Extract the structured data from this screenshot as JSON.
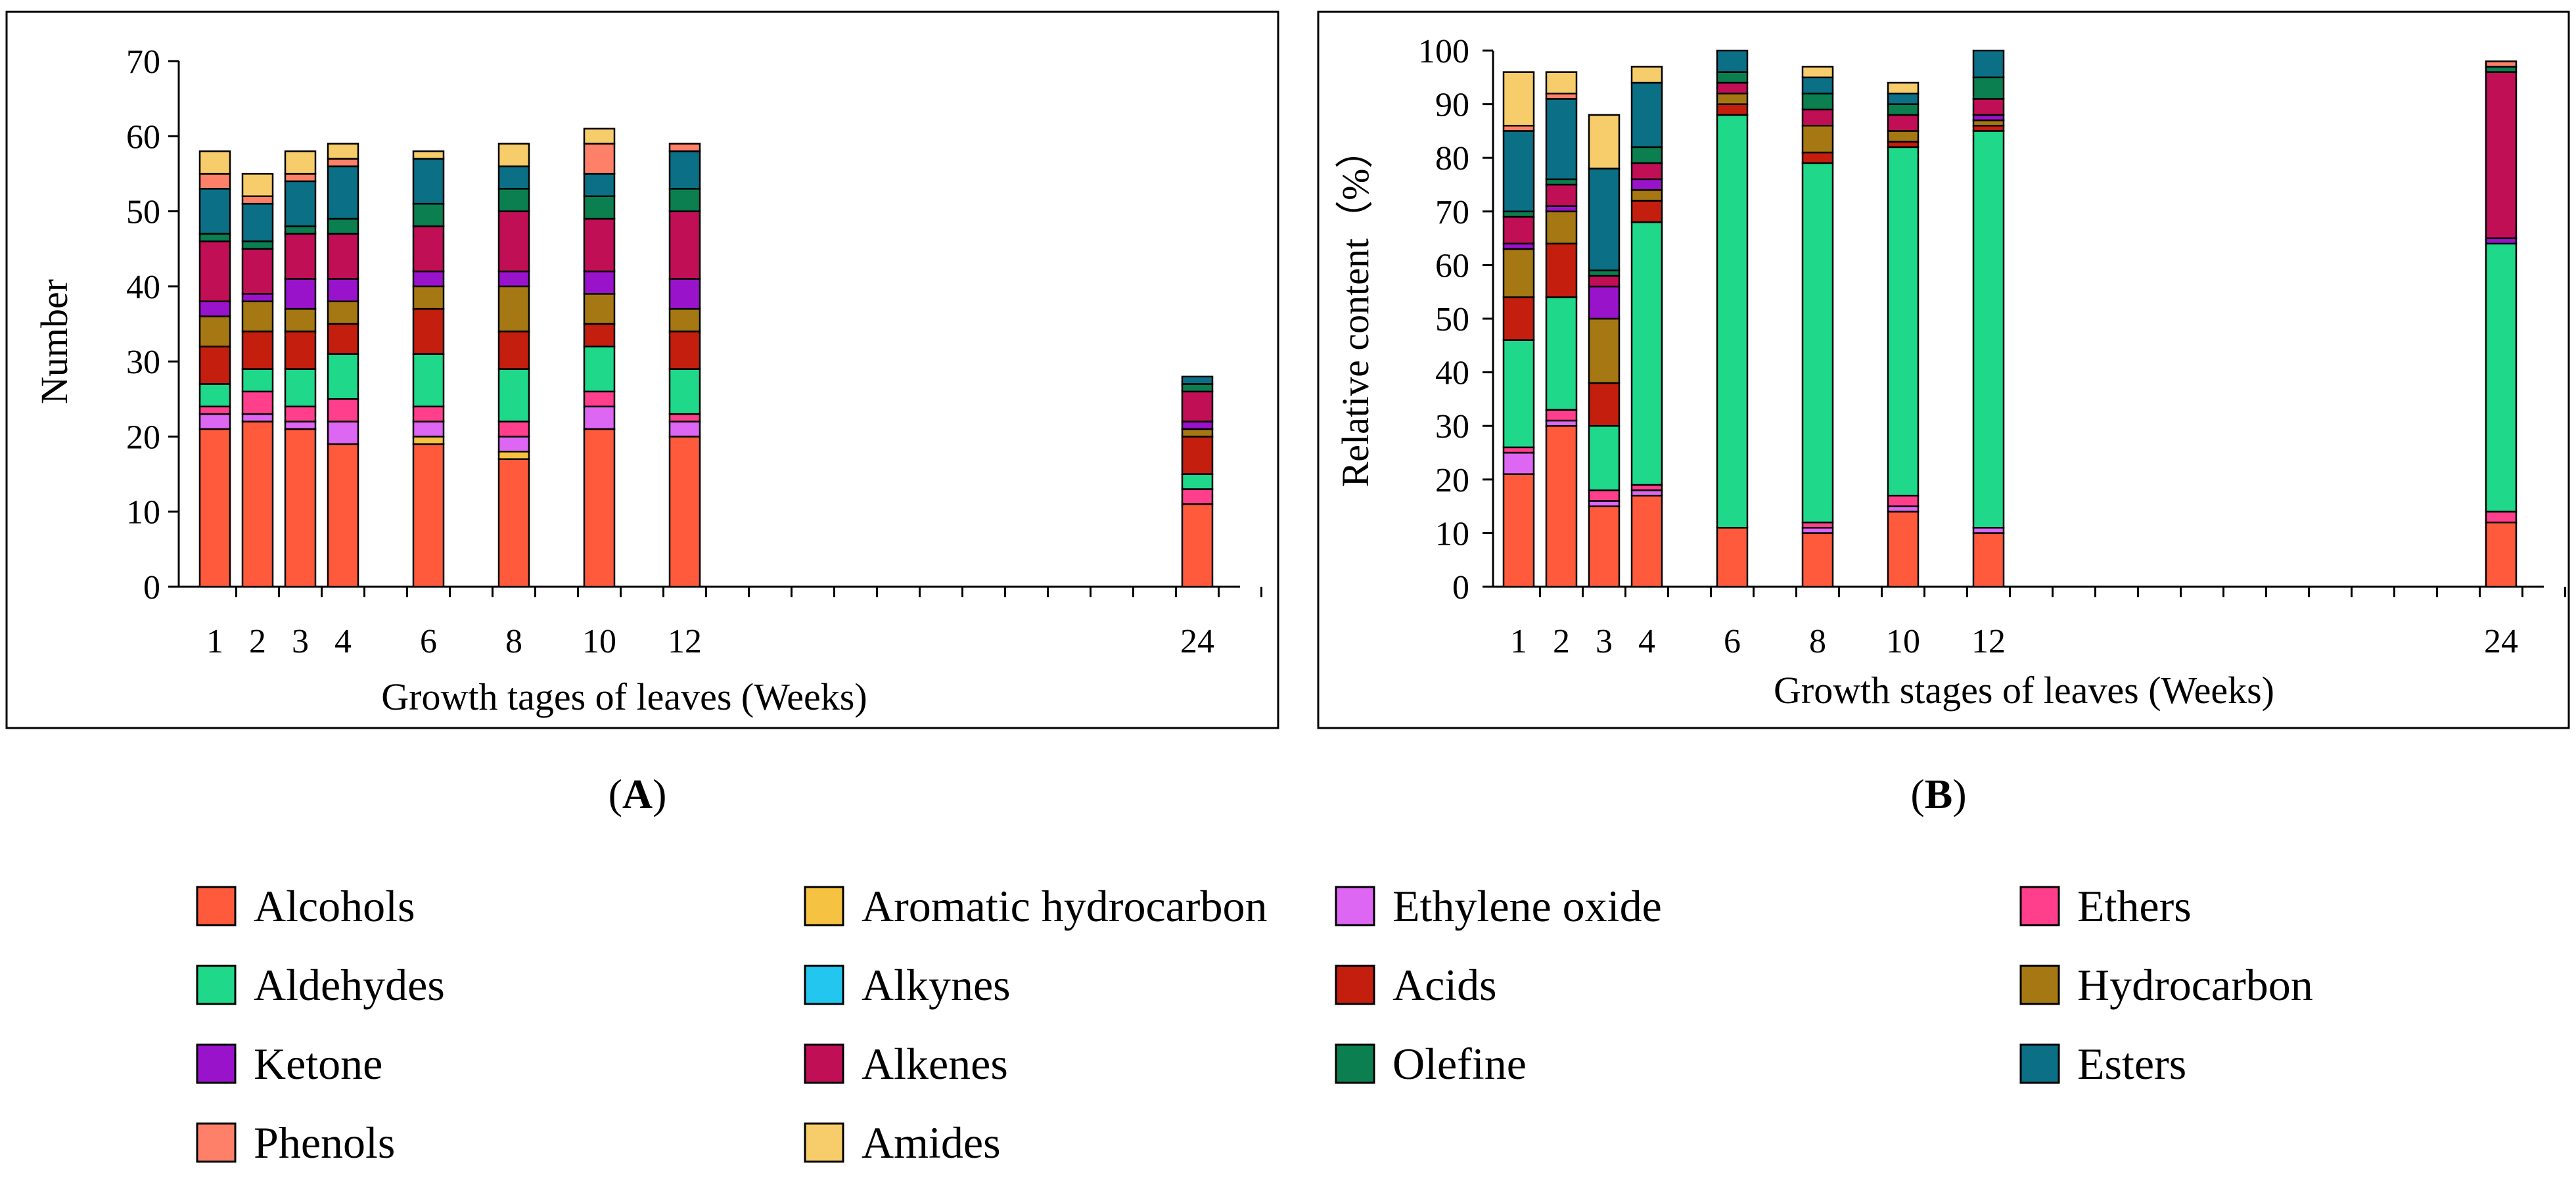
{
  "legend": [
    {
      "name": "Alcohols",
      "color": "#FF5A3C"
    },
    {
      "name": "Aromatic hydrocarbon",
      "color": "#F5C242"
    },
    {
      "name": "Ethylene oxide",
      "color": "#DD66F2"
    },
    {
      "name": "Ethers",
      "color": "#FF3F8C"
    },
    {
      "name": "Aldehydes",
      "color": "#1FD88A"
    },
    {
      "name": "Alkynes",
      "color": "#22C6EE"
    },
    {
      "name": "Acids",
      "color": "#C41E0F"
    },
    {
      "name": "Hydrocarbon",
      "color": "#A67814"
    },
    {
      "name": "Ketone",
      "color": "#9913CB"
    },
    {
      "name": "Alkenes",
      "color": "#C00F55"
    },
    {
      "name": "Olefine",
      "color": "#0C7F50"
    },
    {
      "name": "Esters",
      "color": "#0B6F86"
    },
    {
      "name": "Phenols",
      "color": "#FF8068"
    },
    {
      "name": "Amides",
      "color": "#F6CD6A"
    }
  ],
  "chart_data": [
    {
      "type": "bar",
      "stacked": true,
      "panel_label": "A",
      "xlabel": "Growth tages of leaves (Weeks)",
      "ylabel": "Number",
      "ylim": [
        0,
        70
      ],
      "yticks": [
        0,
        10,
        20,
        30,
        40,
        50,
        60,
        70
      ],
      "xlim": [
        0,
        25
      ],
      "x_ticks": [
        1,
        2,
        3,
        4,
        5,
        6,
        7,
        8,
        9,
        10,
        11,
        12,
        13,
        14,
        15,
        16,
        17,
        18,
        19,
        20,
        21,
        22,
        23,
        24,
        25
      ],
      "categories": [
        "1",
        "2",
        "3",
        "4",
        "6",
        "8",
        "10",
        "12",
        "24"
      ],
      "series": [
        {
          "name": "Alcohols",
          "values": [
            21,
            22,
            21,
            19,
            19,
            17,
            21,
            20,
            11
          ]
        },
        {
          "name": "Aromatic hydrocarbon",
          "values": [
            0,
            0,
            0,
            0,
            1,
            1,
            0,
            0,
            0
          ]
        },
        {
          "name": "Ethylene oxide",
          "values": [
            2,
            1,
            1,
            3,
            2,
            2,
            3,
            2,
            0
          ]
        },
        {
          "name": "Ethers",
          "values": [
            1,
            3,
            2,
            3,
            2,
            2,
            2,
            1,
            2
          ]
        },
        {
          "name": "Aldehydes",
          "values": [
            3,
            3,
            5,
            6,
            7,
            7,
            6,
            6,
            2
          ]
        },
        {
          "name": "Alkynes",
          "values": [
            0,
            0,
            0,
            0,
            0,
            0,
            0,
            0,
            0
          ]
        },
        {
          "name": "Acids",
          "values": [
            5,
            5,
            5,
            4,
            6,
            5,
            3,
            5,
            5
          ]
        },
        {
          "name": "Hydrocarbon",
          "values": [
            4,
            4,
            3,
            3,
            3,
            6,
            4,
            3,
            1
          ]
        },
        {
          "name": "Ketone",
          "values": [
            2,
            1,
            4,
            3,
            2,
            2,
            3,
            4,
            1
          ]
        },
        {
          "name": "Alkenes",
          "values": [
            8,
            6,
            6,
            6,
            6,
            8,
            7,
            9,
            4
          ]
        },
        {
          "name": "Olefine",
          "values": [
            1,
            1,
            1,
            2,
            3,
            3,
            3,
            3,
            1
          ]
        },
        {
          "name": "Esters",
          "values": [
            6,
            5,
            6,
            7,
            6,
            3,
            3,
            5,
            1
          ]
        },
        {
          "name": "Phenols",
          "values": [
            2,
            1,
            1,
            1,
            0,
            0,
            4,
            1,
            0
          ]
        },
        {
          "name": "Amides",
          "values": [
            3,
            3,
            3,
            2,
            1,
            3,
            2,
            0,
            0
          ]
        }
      ]
    },
    {
      "type": "bar",
      "stacked": true,
      "panel_label": "B",
      "xlabel": "Growth stages of leaves (Weeks)",
      "ylabel": "Relative content（%）",
      "ylim": [
        0,
        100
      ],
      "yticks": [
        0,
        10,
        20,
        30,
        40,
        50,
        60,
        70,
        80,
        90,
        100
      ],
      "xlim": [
        0,
        25
      ],
      "x_ticks": [
        1,
        2,
        3,
        4,
        5,
        6,
        7,
        8,
        9,
        10,
        11,
        12,
        13,
        14,
        15,
        16,
        17,
        18,
        19,
        20,
        21,
        22,
        23,
        24,
        25
      ],
      "categories": [
        "1",
        "2",
        "3",
        "4",
        "6",
        "8",
        "10",
        "12",
        "24"
      ],
      "series": [
        {
          "name": "Alcohols",
          "values": [
            21,
            30,
            15,
            17,
            11,
            10,
            14,
            10,
            12
          ]
        },
        {
          "name": "Aromatic hydrocarbon",
          "values": [
            0,
            0,
            0,
            0,
            0,
            0,
            0,
            0,
            0
          ]
        },
        {
          "name": "Ethylene oxide",
          "values": [
            4,
            1,
            1,
            1,
            0,
            1,
            1,
            1,
            0
          ]
        },
        {
          "name": "Ethers",
          "values": [
            1,
            2,
            2,
            1,
            0,
            1,
            2,
            0,
            2
          ]
        },
        {
          "name": "Aldehydes",
          "values": [
            20,
            21,
            12,
            49,
            77,
            67,
            65,
            74,
            50
          ]
        },
        {
          "name": "Alkynes",
          "values": [
            0,
            0,
            0,
            0,
            0,
            0,
            0,
            0,
            0
          ]
        },
        {
          "name": "Acids",
          "values": [
            8,
            10,
            8,
            4,
            2,
            2,
            1,
            1,
            0
          ]
        },
        {
          "name": "Hydrocarbon",
          "values": [
            9,
            6,
            12,
            2,
            2,
            5,
            2,
            1,
            0
          ]
        },
        {
          "name": "Ketone",
          "values": [
            1,
            1,
            6,
            2,
            0,
            0,
            0,
            1,
            1
          ]
        },
        {
          "name": "Alkenes",
          "values": [
            5,
            4,
            2,
            3,
            2,
            3,
            3,
            3,
            31
          ]
        },
        {
          "name": "Olefine",
          "values": [
            1,
            1,
            1,
            3,
            2,
            3,
            2,
            4,
            1
          ]
        },
        {
          "name": "Esters",
          "values": [
            15,
            15,
            19,
            12,
            4,
            3,
            2,
            5,
            0
          ]
        },
        {
          "name": "Phenols",
          "values": [
            1,
            1,
            0,
            0,
            0,
            0,
            0,
            0,
            1
          ]
        },
        {
          "name": "Amides",
          "values": [
            10,
            4,
            10,
            3,
            0,
            2,
            2,
            0,
            0
          ]
        }
      ]
    }
  ]
}
